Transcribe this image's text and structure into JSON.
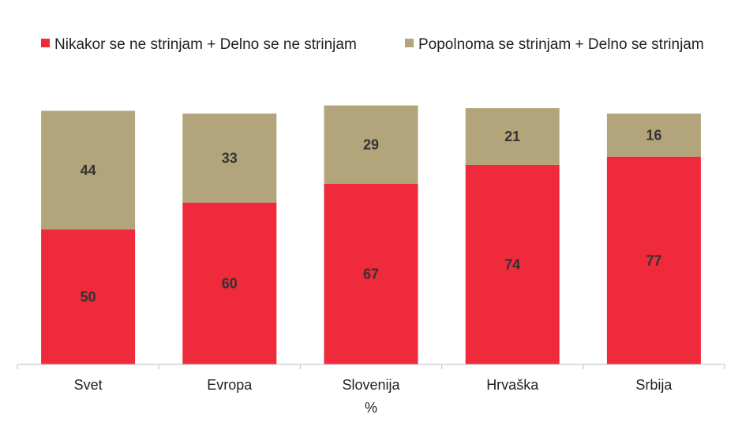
{
  "chart_data": {
    "type": "bar",
    "stacked": true,
    "categories": [
      "Svet",
      "Evropa",
      "Slovenija",
      "Hrvaška",
      "Srbija"
    ],
    "series": [
      {
        "name": "Nikakor se ne strinjam + Delno se ne strinjam",
        "color": "#ee2a3b",
        "values": [
          50,
          60,
          67,
          74,
          77
        ]
      },
      {
        "name": "Popolnoma se strinjam + Delno se strinjam",
        "color": "#b2a57b",
        "values": [
          44,
          33,
          29,
          21,
          16
        ]
      }
    ],
    "xlabel": "%",
    "ylabel": "",
    "ylim": [
      0,
      100
    ],
    "grid": false,
    "legend_position": "top"
  }
}
